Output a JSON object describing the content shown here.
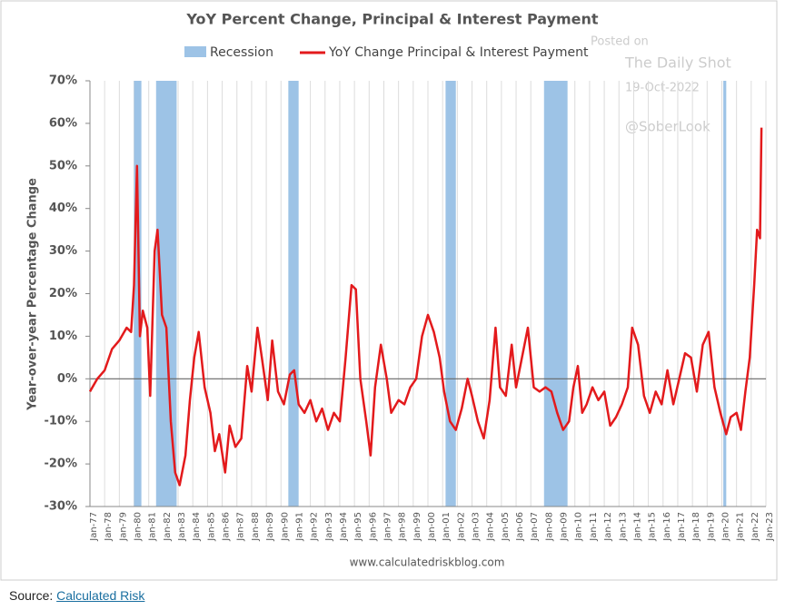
{
  "chart_data": {
    "type": "line",
    "title": "YoY Percent Change, Principal & Interest Payment",
    "y_label": "Year-over-year Percentage Change",
    "source_url": "www.calculatedriskblog.com",
    "watermark": [
      "Posted on",
      "The Daily Shot",
      "19-Oct-2022",
      "@SoberLook"
    ],
    "recession": {
      "name": "Recession",
      "color": "#9dc3e6",
      "ranges": [
        [
          1980.0,
          1980.5
        ],
        [
          1981.5,
          1982.9
        ],
        [
          1990.5,
          1991.2
        ],
        [
          2001.2,
          2001.9
        ],
        [
          2007.9,
          2009.5
        ],
        [
          2020.1,
          2020.3
        ]
      ]
    },
    "x": [
      1977.0,
      1977.5,
      1978.0,
      1978.5,
      1979.0,
      1979.5,
      1979.8,
      1980.0,
      1980.2,
      1980.4,
      1980.6,
      1980.9,
      1981.1,
      1981.4,
      1981.6,
      1981.9,
      1982.2,
      1982.5,
      1982.8,
      1983.1,
      1983.5,
      1983.8,
      1984.1,
      1984.4,
      1984.8,
      1985.2,
      1985.5,
      1985.8,
      1986.2,
      1986.5,
      1986.9,
      1987.3,
      1987.7,
      1988.0,
      1988.4,
      1988.7,
      1989.1,
      1989.4,
      1989.8,
      1990.2,
      1990.6,
      1990.9,
      1991.2,
      1991.6,
      1992.0,
      1992.4,
      1992.8,
      1993.2,
      1993.6,
      1994.0,
      1994.4,
      1994.8,
      1995.1,
      1995.4,
      1995.8,
      1996.1,
      1996.4,
      1996.8,
      1997.2,
      1997.5,
      1998.0,
      1998.4,
      1998.8,
      1999.2,
      1999.6,
      2000.0,
      2000.4,
      2000.8,
      2001.1,
      2001.5,
      2001.9,
      2002.3,
      2002.7,
      2003.0,
      2003.4,
      2003.8,
      2004.2,
      2004.6,
      2004.9,
      2005.3,
      2005.7,
      2006.0,
      2006.4,
      2006.8,
      2007.2,
      2007.6,
      2008.0,
      2008.4,
      2008.8,
      2009.2,
      2009.6,
      2009.9,
      2010.2,
      2010.5,
      2010.8,
      2011.2,
      2011.6,
      2012.0,
      2012.4,
      2012.8,
      2013.2,
      2013.6,
      2013.9,
      2014.3,
      2014.7,
      2015.1,
      2015.5,
      2015.9,
      2016.3,
      2016.7,
      2017.1,
      2017.5,
      2017.9,
      2018.3,
      2018.7,
      2019.1,
      2019.5,
      2019.9,
      2020.3,
      2020.6,
      2021.0,
      2021.3,
      2021.6,
      2021.9,
      2022.2,
      2022.4,
      2022.6,
      2022.7
    ],
    "series": [
      {
        "name": "YoY Change Principal & Interest Payment",
        "color": "#e31a1c",
        "values": [
          -3,
          0,
          2,
          7,
          9,
          12,
          11,
          22,
          50,
          10,
          16,
          12,
          -4,
          30,
          35,
          15,
          12,
          -10,
          -22,
          -25,
          -18,
          -5,
          5,
          11,
          -2,
          -8,
          -17,
          -13,
          -22,
          -11,
          -16,
          -14,
          3,
          -3,
          12,
          5,
          -5,
          9,
          -3,
          -6,
          1,
          2,
          -6,
          -8,
          -5,
          -10,
          -7,
          -12,
          -8,
          -10,
          5,
          22,
          21,
          0,
          -10,
          -18,
          -2,
          8,
          0,
          -8,
          -5,
          -6,
          -2,
          0,
          10,
          15,
          11,
          5,
          -3,
          -10,
          -12,
          -7,
          0,
          -4,
          -10,
          -14,
          -5,
          12,
          -2,
          -4,
          8,
          -2,
          5,
          12,
          -2,
          -3,
          -2,
          -3,
          -8,
          -12,
          -10,
          -2,
          3,
          -8,
          -6,
          -2,
          -5,
          -3,
          -11,
          -9,
          -6,
          -2,
          12,
          8,
          -4,
          -8,
          -3,
          -6,
          2,
          -6,
          0,
          6,
          5,
          -3,
          8,
          11,
          -2,
          -8,
          -13,
          -9,
          -8,
          -12,
          -3,
          5,
          22,
          35,
          33,
          59
        ]
      }
    ],
    "xlim": [
      1977,
      2023
    ],
    "xticks": [
      {
        "value": 1977,
        "label": "Jan-77"
      },
      {
        "value": 1978,
        "label": "Jan-78"
      },
      {
        "value": 1979,
        "label": "Jan-79"
      },
      {
        "value": 1980,
        "label": "Jan-80"
      },
      {
        "value": 1981,
        "label": "Jan-81"
      },
      {
        "value": 1982,
        "label": "Jan-82"
      },
      {
        "value": 1983,
        "label": "Jan-83"
      },
      {
        "value": 1984,
        "label": "Jan-84"
      },
      {
        "value": 1985,
        "label": "Jan-85"
      },
      {
        "value": 1986,
        "label": "Jan-86"
      },
      {
        "value": 1987,
        "label": "Jan-87"
      },
      {
        "value": 1988,
        "label": "Jan-88"
      },
      {
        "value": 1989,
        "label": "Jan-89"
      },
      {
        "value": 1990,
        "label": "Jan-90"
      },
      {
        "value": 1991,
        "label": "Jan-91"
      },
      {
        "value": 1992,
        "label": "Jan-92"
      },
      {
        "value": 1993,
        "label": "Jan-93"
      },
      {
        "value": 1994,
        "label": "Jan-94"
      },
      {
        "value": 1995,
        "label": "Jan-95"
      },
      {
        "value": 1996,
        "label": "Jan-96"
      },
      {
        "value": 1997,
        "label": "Jan-97"
      },
      {
        "value": 1998,
        "label": "Jan-98"
      },
      {
        "value": 1999,
        "label": "Jan-99"
      },
      {
        "value": 2000,
        "label": "Jan-00"
      },
      {
        "value": 2001,
        "label": "Jan-01"
      },
      {
        "value": 2002,
        "label": "Jan-02"
      },
      {
        "value": 2003,
        "label": "Jan-03"
      },
      {
        "value": 2004,
        "label": "Jan-04"
      },
      {
        "value": 2005,
        "label": "Jan-05"
      },
      {
        "value": 2006,
        "label": "Jan-06"
      },
      {
        "value": 2007,
        "label": "Jan-07"
      },
      {
        "value": 2008,
        "label": "Jan-08"
      },
      {
        "value": 2009,
        "label": "Jan-09"
      },
      {
        "value": 2010,
        "label": "Jan-10"
      },
      {
        "value": 2011,
        "label": "Jan-11"
      },
      {
        "value": 2012,
        "label": "Jan-12"
      },
      {
        "value": 2013,
        "label": "Jan-13"
      },
      {
        "value": 2014,
        "label": "Jan-14"
      },
      {
        "value": 2015,
        "label": "Jan-15"
      },
      {
        "value": 2016,
        "label": "Jan-16"
      },
      {
        "value": 2017,
        "label": "Jan-17"
      },
      {
        "value": 2018,
        "label": "Jan-18"
      },
      {
        "value": 2019,
        "label": "Jan-19"
      },
      {
        "value": 2020,
        "label": "Jan-20"
      },
      {
        "value": 2021,
        "label": "Jan-21"
      },
      {
        "value": 2022,
        "label": "Jan-22"
      },
      {
        "value": 2023,
        "label": "Jan-23"
      }
    ],
    "ylim": [
      -30,
      70
    ],
    "yticks": [
      {
        "value": -30,
        "label": "-30%"
      },
      {
        "value": -20,
        "label": "-20%"
      },
      {
        "value": -10,
        "label": "-10%"
      },
      {
        "value": 0,
        "label": "0%"
      },
      {
        "value": 10,
        "label": "10%"
      },
      {
        "value": 20,
        "label": "20%"
      },
      {
        "value": 30,
        "label": "30%"
      },
      {
        "value": 40,
        "label": "40%"
      },
      {
        "value": 50,
        "label": "50%"
      },
      {
        "value": 60,
        "label": "60%"
      },
      {
        "value": 70,
        "label": "70%"
      }
    ],
    "grid": true
  },
  "caption": {
    "prefix": "Source:",
    "link": "Calculated Risk"
  }
}
